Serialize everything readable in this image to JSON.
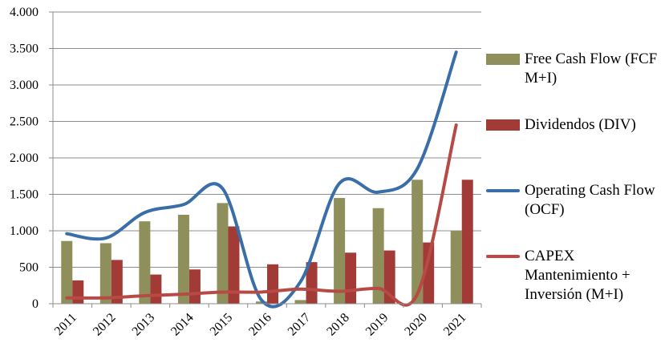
{
  "chart_data": {
    "type": "bar+line",
    "categories": [
      "2011",
      "2012",
      "2013",
      "2014",
      "2015",
      "2016",
      "2017",
      "2018",
      "2019",
      "2020",
      "2021"
    ],
    "ylim": [
      0,
      4000
    ],
    "yticks": [
      0,
      500,
      1000,
      1500,
      2000,
      2500,
      3000,
      3500,
      4000
    ],
    "ytick_labels": [
      "0",
      "500",
      "1.000",
      "1.500",
      "2.000",
      "2.500",
      "3.000",
      "3.500",
      "4.000"
    ],
    "grid": true,
    "legend_position": "right",
    "series": [
      {
        "name": "Free Cash Flow (FCF M+I)",
        "kind": "bar",
        "color": "#8e8f5a",
        "values": [
          860,
          830,
          1130,
          1220,
          1380,
          30,
          50,
          1450,
          1310,
          1700,
          1000
        ]
      },
      {
        "name": "Dividendos (DIV)",
        "kind": "bar",
        "color": "#a23a35",
        "values": [
          320,
          600,
          400,
          470,
          1060,
          540,
          570,
          700,
          730,
          840,
          1700
        ]
      },
      {
        "name": "Operating Cash Flow (OCF)",
        "kind": "line",
        "color": "#3a6ea8",
        "values": [
          960,
          900,
          1250,
          1360,
          1580,
          50,
          300,
          1650,
          1530,
          1850,
          3450
        ]
      },
      {
        "name": "CAPEX Mantenimiento + Inversión (M+I)",
        "kind": "line",
        "color": "#b84a46",
        "values": [
          80,
          80,
          110,
          130,
          160,
          160,
          200,
          170,
          210,
          130,
          2450
        ]
      }
    ]
  },
  "legend": [
    {
      "label": "Free Cash Flow (FCF M+I)",
      "kind": "box",
      "color": "#8e8f5a"
    },
    {
      "label": "Dividendos (DIV)",
      "kind": "box",
      "color": "#a23a35"
    },
    {
      "label": "Operating Cash Flow (OCF)",
      "kind": "line",
      "color": "#3a6ea8"
    },
    {
      "label": "CAPEX Mantenimiento + Inversión (M+I)",
      "kind": "line",
      "color": "#b84a46"
    }
  ]
}
